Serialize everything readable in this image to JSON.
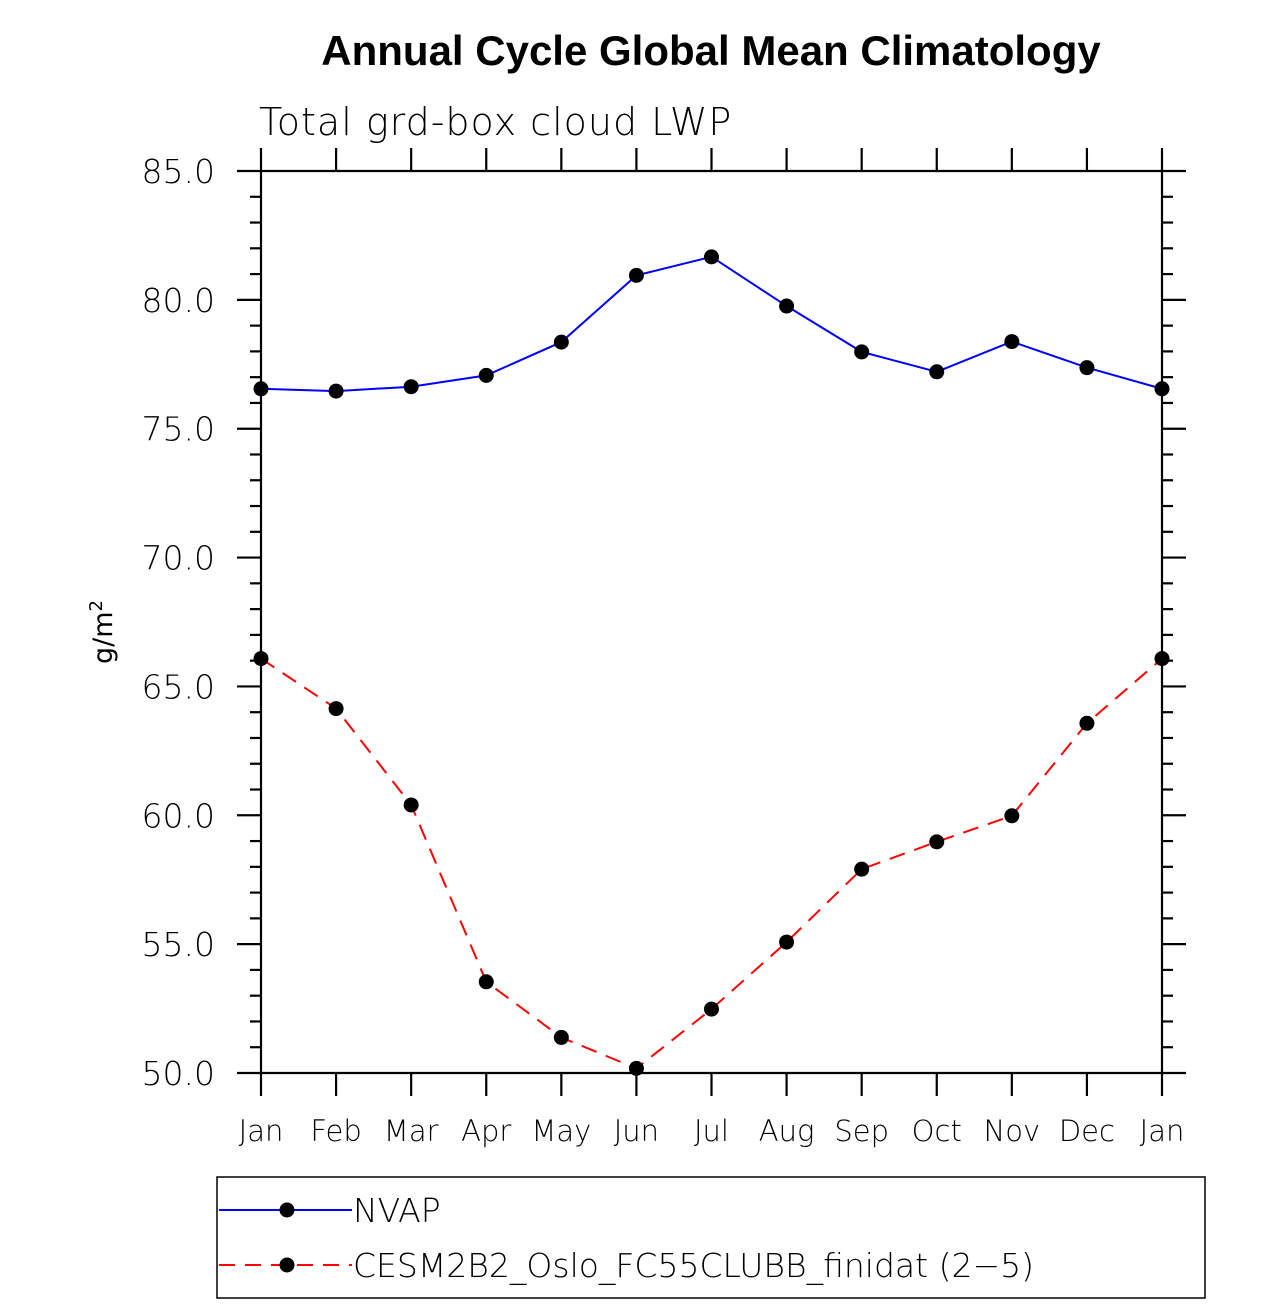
{
  "chart_data": {
    "type": "line",
    "title": "Annual Cycle Global Mean Climatology",
    "subtitle": "Total grd-box cloud LWP",
    "xlabel": "",
    "ylabel": "g/m",
    "ylabel_superscript": "2",
    "categories": [
      "Jan",
      "Feb",
      "Mar",
      "Apr",
      "May",
      "Jun",
      "Jul",
      "Aug",
      "Sep",
      "Oct",
      "Nov",
      "Dec",
      "Jan"
    ],
    "ylim": [
      50.0,
      85.0
    ],
    "yticks": [
      50.0,
      55.0,
      60.0,
      65.0,
      70.0,
      75.0,
      80.0,
      85.0
    ],
    "ytick_labels": [
      "50.0",
      "55.0",
      "60.0",
      "65.0",
      "70.0",
      "75.0",
      "80.0",
      "85.0"
    ],
    "yminor_step": 1.0,
    "grid": false,
    "legend_position": "bottom",
    "series": [
      {
        "name": "NVAP",
        "color": "#0000ff",
        "line_style": "solid",
        "marker": "filled-circle",
        "marker_color": "#000000",
        "values": [
          76.55,
          76.46,
          76.63,
          77.07,
          78.36,
          80.95,
          81.67,
          79.76,
          77.98,
          77.21,
          78.38,
          77.37,
          76.55
        ]
      },
      {
        "name": "CESM2B2_Oslo_FC55CLUBB_finidat (2−5)",
        "color": "#ff0000",
        "line_style": "dashed",
        "marker": "filled-circle",
        "marker_color": "#000000",
        "values": [
          66.08,
          64.14,
          60.4,
          53.54,
          51.38,
          50.18,
          52.48,
          55.08,
          57.91,
          58.97,
          59.98,
          63.57,
          66.08
        ]
      }
    ]
  }
}
